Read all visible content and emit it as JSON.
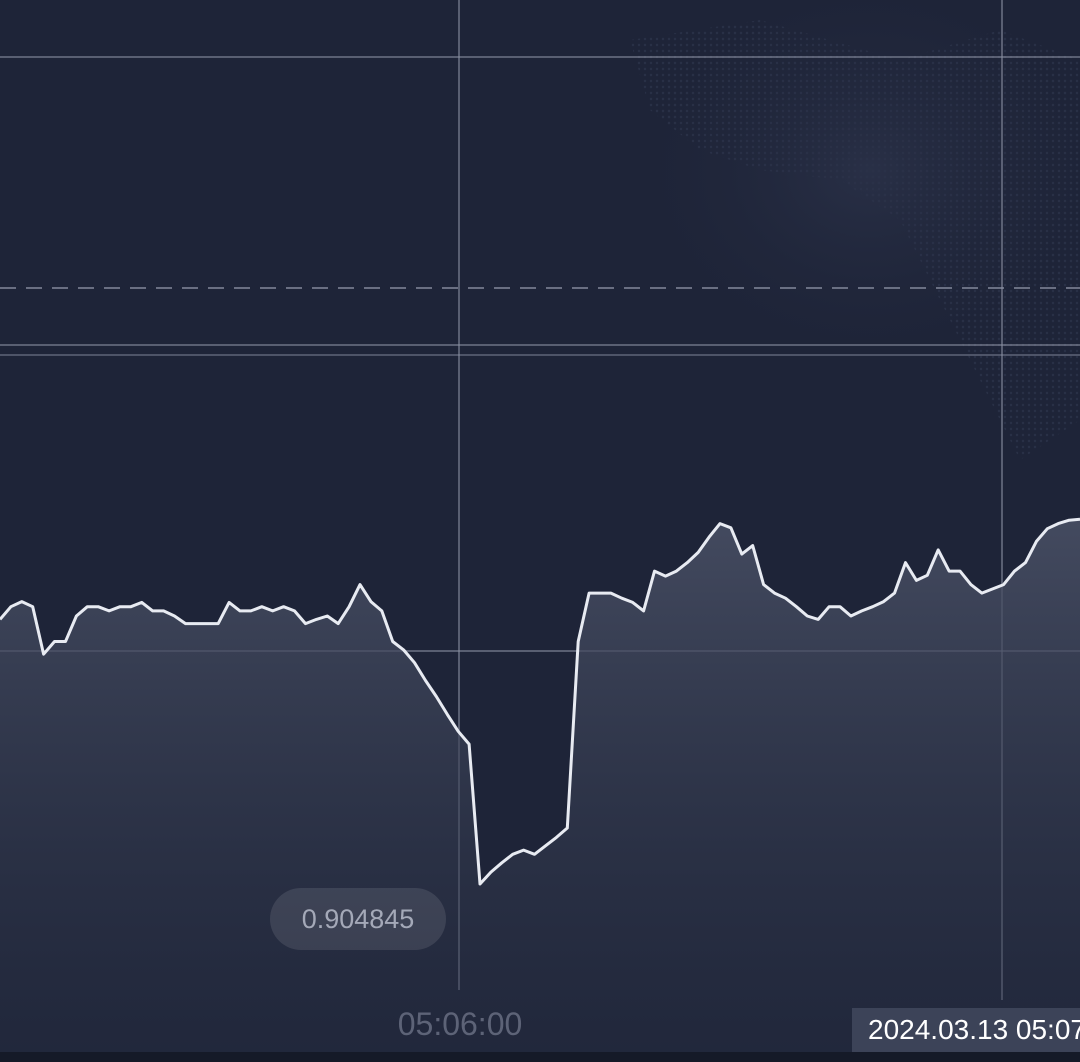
{
  "theme": {
    "background": "#1e2438",
    "line_color": "#e8ebf2",
    "grid_color": "#8a90a3",
    "area_top": "#4a5166",
    "area_bottom": "#262d41"
  },
  "chart_data": {
    "type": "area",
    "title": "",
    "xlabel": "",
    "ylabel": "",
    "x_tick_labels": [
      "05:06:00"
    ],
    "current_time_label": "2024.03.13 05:07",
    "min_value_label": "0.904845",
    "grid": true,
    "x_range": [
      0,
      1080
    ],
    "y_range": [
      0.904845,
      0.905286
    ],
    "series": [
      {
        "values": [
          0.905157,
          0.905172,
          0.905178,
          0.905172,
          0.905116,
          0.905131,
          0.905131,
          0.905161,
          0.905172,
          0.905172,
          0.905167,
          0.905172,
          0.905172,
          0.905177,
          0.905167,
          0.905167,
          0.905161,
          0.905152,
          0.905152,
          0.905152,
          0.905152,
          0.905177,
          0.905167,
          0.905167,
          0.905172,
          0.905167,
          0.905172,
          0.905167,
          0.905152,
          0.905157,
          0.905161,
          0.905152,
          0.905172,
          0.905198,
          0.905178,
          0.905167,
          0.905131,
          0.905121,
          0.905106,
          0.905085,
          0.905066,
          0.905045,
          0.905025,
          0.90501,
          0.904845,
          0.904859,
          0.90487,
          0.90488,
          0.904885,
          0.90488,
          0.90489,
          0.9049,
          0.904911,
          0.905131,
          0.905188,
          0.905188,
          0.905188,
          0.905182,
          0.905177,
          0.905167,
          0.905214,
          0.905208,
          0.905214,
          0.905224,
          0.905236,
          0.905254,
          0.90527,
          0.905265,
          0.905234,
          0.905244,
          0.905198,
          0.905188,
          0.905182,
          0.905172,
          0.905161,
          0.905157,
          0.905172,
          0.905172,
          0.905161,
          0.905167,
          0.905172,
          0.905178,
          0.905188,
          0.905224,
          0.905203,
          0.905209,
          0.905239,
          0.905214,
          0.905214,
          0.905198,
          0.905188,
          0.905193,
          0.905198,
          0.905214,
          0.905224,
          0.905249,
          0.905264,
          0.90527,
          0.905274,
          0.905275
        ]
      }
    ]
  }
}
